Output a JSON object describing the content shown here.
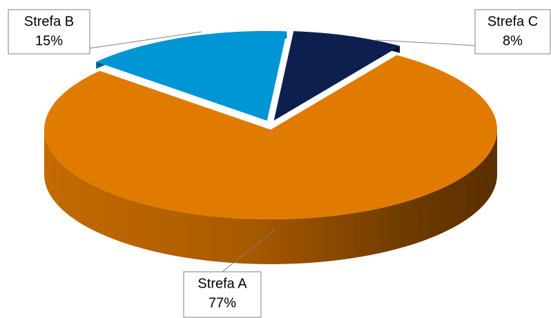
{
  "chart_data": {
    "type": "pie",
    "categories": [
      "Strefa A",
      "Strefa B",
      "Strefa C"
    ],
    "values": [
      77,
      15,
      8
    ],
    "value_labels": [
      "77%",
      "15%",
      "8%"
    ],
    "colors": [
      "#e07b00",
      "#0096d6",
      "#0d1f4f"
    ]
  }
}
